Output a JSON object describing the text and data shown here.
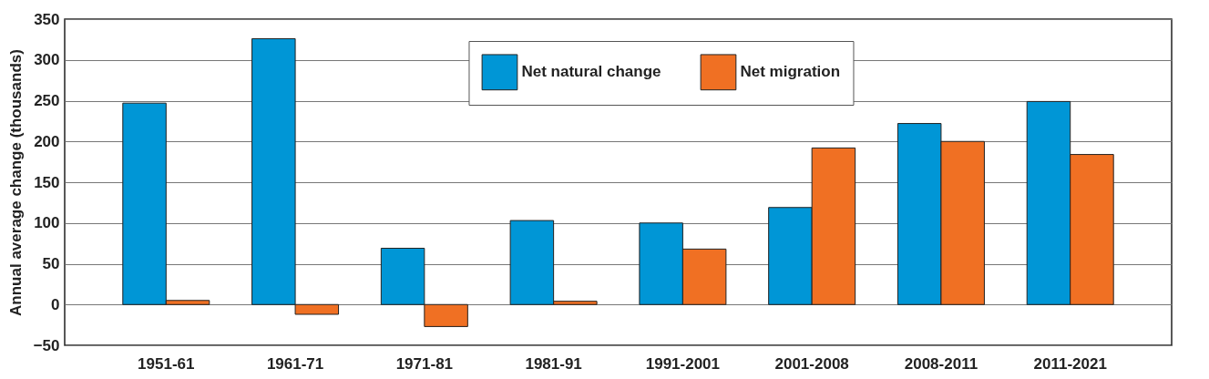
{
  "chart_data": {
    "type": "bar",
    "ylabel": "Annual average change (thousands)",
    "categories": [
      "1951-61",
      "1961-71",
      "1971-81",
      "1981-91",
      "1991-2001",
      "2001-2008",
      "2008-2011",
      "2011-2021"
    ],
    "series": [
      {
        "name": "Net natural change",
        "color": "#0096d6",
        "values": [
          247,
          326,
          69,
          103,
          100,
          119,
          222,
          249
        ]
      },
      {
        "name": "Net migration",
        "color": "#f07023",
        "values": [
          5,
          -12,
          -27,
          4,
          68,
          192,
          200,
          184
        ]
      }
    ],
    "ylim": [
      -50,
      350
    ],
    "yticks": [
      -50,
      0,
      50,
      100,
      150,
      200,
      250,
      300,
      350
    ],
    "grid": "y",
    "legend": "top"
  }
}
